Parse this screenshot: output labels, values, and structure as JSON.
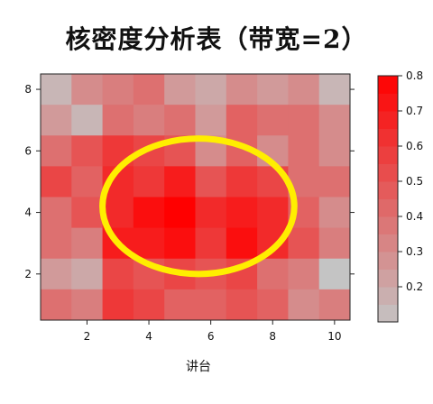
{
  "title": "核密度分析表（带宽=2）",
  "chart_data": {
    "type": "heatmap",
    "title": "核密度分析表（带宽=2）",
    "xlabel": "讲台",
    "ylabel": "",
    "x_range": [
      0.5,
      10.5
    ],
    "y_range": [
      0.5,
      8.5
    ],
    "x_ticks": [
      2,
      4,
      6,
      8,
      10
    ],
    "y_ticks": [
      2,
      4,
      6,
      8
    ],
    "x": [
      1,
      2,
      3,
      4,
      5,
      6,
      7,
      8,
      9,
      10
    ],
    "y": [
      8,
      7,
      6,
      5,
      4,
      3,
      2,
      1
    ],
    "values": [
      [
        0.15,
        0.3,
        0.35,
        0.4,
        0.25,
        0.2,
        0.3,
        0.25,
        0.3,
        0.15
      ],
      [
        0.25,
        0.15,
        0.4,
        0.35,
        0.4,
        0.25,
        0.45,
        0.4,
        0.4,
        0.3
      ],
      [
        0.4,
        0.5,
        0.6,
        0.55,
        0.5,
        0.3,
        0.45,
        0.3,
        0.4,
        0.3
      ],
      [
        0.55,
        0.45,
        0.65,
        0.6,
        0.7,
        0.5,
        0.6,
        0.55,
        0.4,
        0.4
      ],
      [
        0.4,
        0.5,
        0.65,
        0.75,
        0.8,
        0.65,
        0.7,
        0.65,
        0.45,
        0.3
      ],
      [
        0.4,
        0.35,
        0.7,
        0.7,
        0.75,
        0.6,
        0.75,
        0.65,
        0.5,
        0.35
      ],
      [
        0.25,
        0.2,
        0.55,
        0.5,
        0.55,
        0.5,
        0.55,
        0.4,
        0.35,
        0.1
      ],
      [
        0.4,
        0.35,
        0.6,
        0.55,
        0.45,
        0.45,
        0.5,
        0.45,
        0.3,
        0.35
      ]
    ],
    "colorbar": {
      "min": 0.1,
      "max": 0.8,
      "ticks": [
        0.2,
        0.3,
        0.4,
        0.5,
        0.6,
        0.7,
        0.8
      ],
      "steps": 14
    },
    "colors": {
      "low": "#c4c4c4",
      "high": "#ff0000",
      "highlight": "#ffee00"
    },
    "highlight": {
      "shape": "ellipse",
      "cx": 5.6,
      "cy": 4.2,
      "rx": 3.1,
      "ry": 2.2
    }
  }
}
